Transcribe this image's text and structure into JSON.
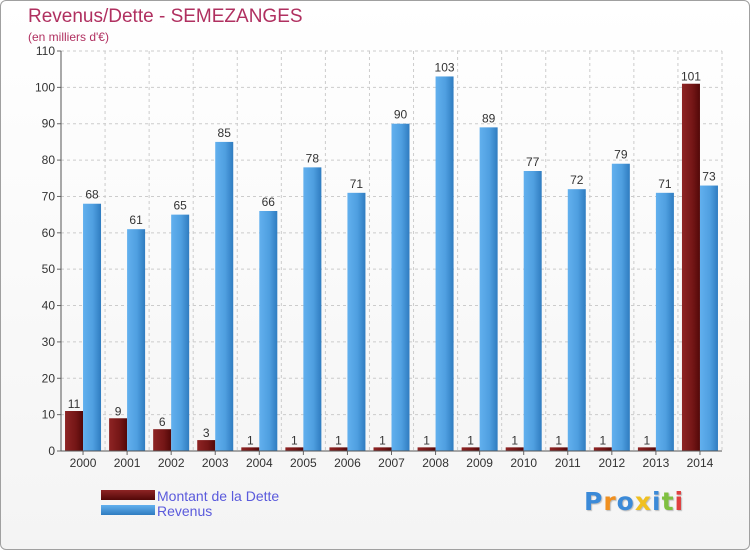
{
  "title": "Revenus/Dette - SEMEZANGES",
  "subtitle": "(en milliers d'€)",
  "colors": {
    "dette": "#7a1a1a",
    "revenus": "#4f9fe0",
    "grid": "#cccccc",
    "text": "#333333",
    "title": "#b03060",
    "legend_text": "#5a5adc"
  },
  "chart_data": {
    "type": "bar",
    "title": "Revenus/Dette - SEMEZANGES",
    "ylabel": "(en milliers d'€)",
    "xlabel": "",
    "categories": [
      "2000",
      "2001",
      "2002",
      "2003",
      "2004",
      "2005",
      "2006",
      "2007",
      "2008",
      "2009",
      "2010",
      "2011",
      "2012",
      "2013",
      "2014"
    ],
    "series": [
      {
        "name": "Montant de la Dette",
        "values": [
          11,
          9,
          6,
          3,
          1,
          1,
          1,
          1,
          1,
          1,
          1,
          1,
          1,
          1,
          101
        ]
      },
      {
        "name": "Revenus",
        "values": [
          68,
          61,
          65,
          85,
          66,
          78,
          71,
          90,
          103,
          89,
          77,
          72,
          79,
          71,
          73
        ]
      }
    ],
    "ylim": [
      0,
      110
    ],
    "yticks": [
      0,
      10,
      20,
      30,
      40,
      50,
      60,
      70,
      80,
      90,
      100,
      110
    ],
    "grid": true,
    "legend": "bottom-left"
  },
  "legend": {
    "items": [
      {
        "label": "Montant de la Dette"
      },
      {
        "label": "Revenus"
      }
    ]
  },
  "logo": {
    "letters": [
      "P",
      "r",
      "o",
      "x",
      "i",
      "t",
      "i"
    ]
  }
}
